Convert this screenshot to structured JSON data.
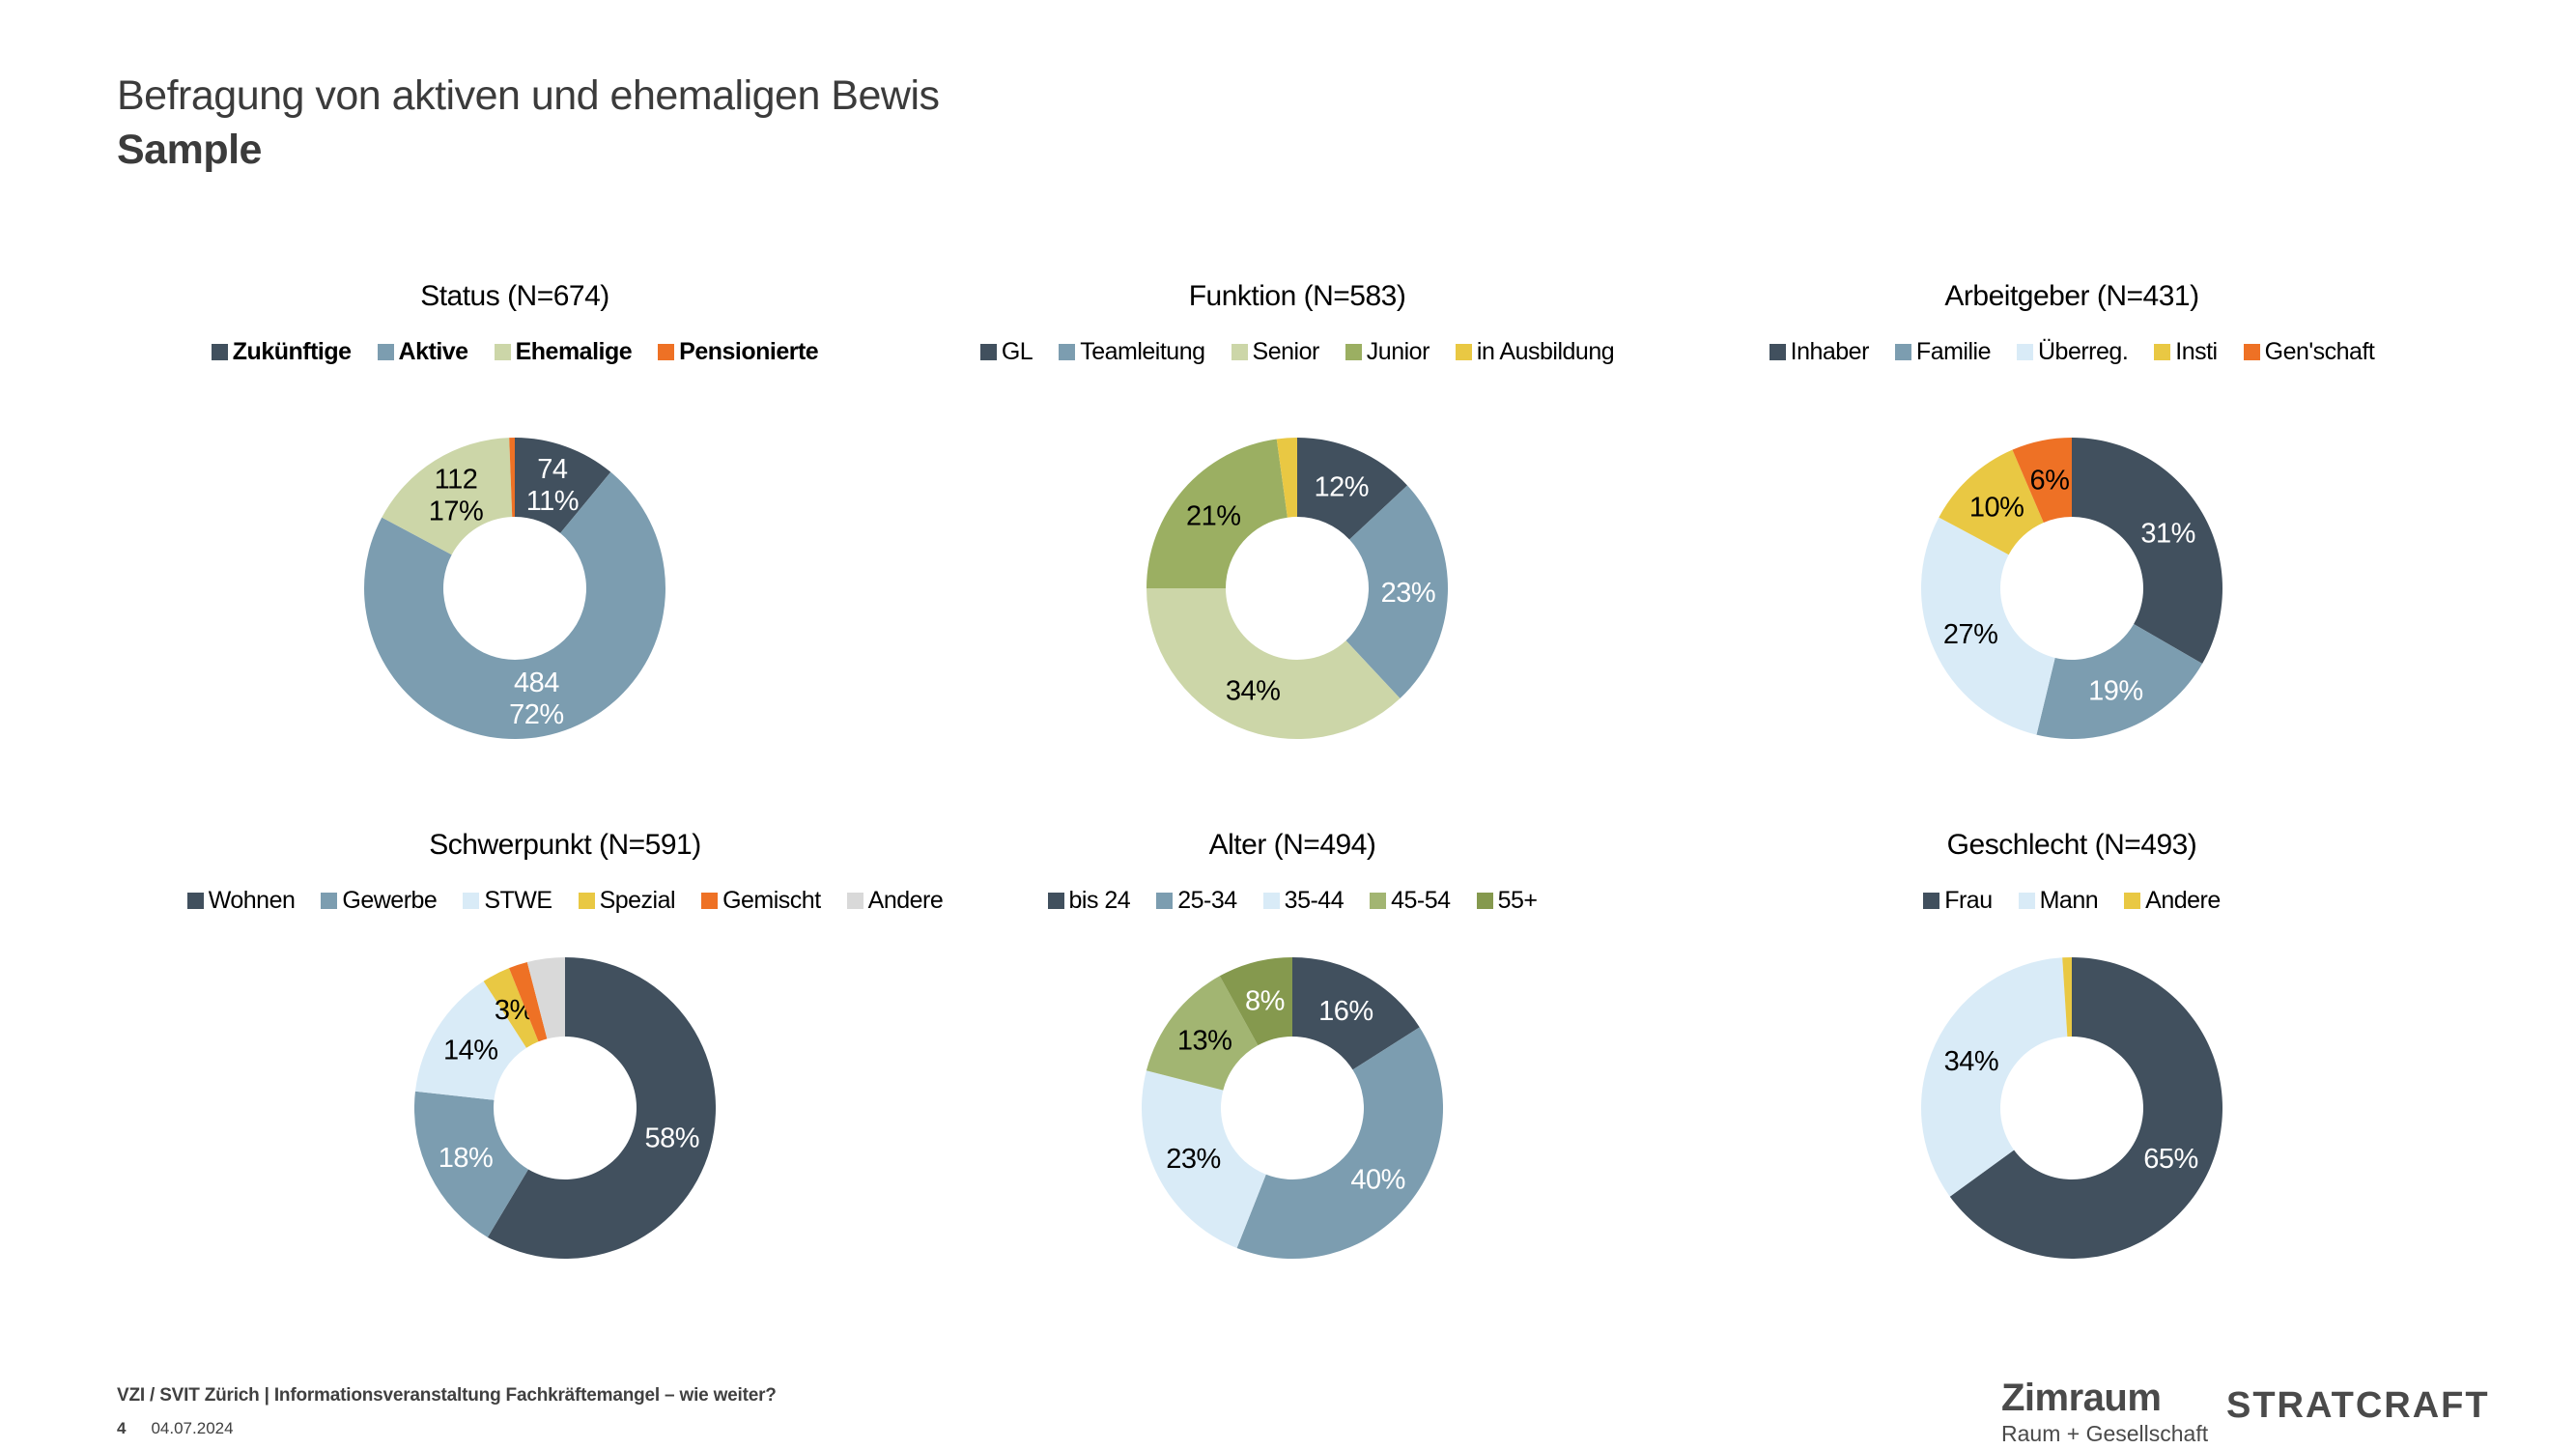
{
  "slide": {
    "title": "Befragung von aktiven und ehemaligen Bewis",
    "subtitle": "Sample"
  },
  "footer": {
    "event_line": "VZI / SVIT Zürich | Informationsveranstaltung Fachkräftemangel – wie weiter?",
    "page_number": "4",
    "date": "04.07.2024"
  },
  "logos": {
    "zimraum": "Zimraum",
    "zimraum_subline": "Raum + Gesellschaft",
    "stratcraft": "STRATCRAFT"
  },
  "colors": {
    "dark_slate": "#41505e",
    "blue_gray": "#7c9db0",
    "light_green": "#ccd6a8",
    "olive": "#9baf62",
    "light_olive": "#a2b572",
    "dark_olive": "#85994e",
    "yellow": "#e9c843",
    "orange": "#ee7125",
    "light_blue": "#d9ebf7",
    "light_gray": "#d9d9d9"
  },
  "chart_data": [
    {
      "type": "pie",
      "title": "Status (N=674)",
      "n": 674,
      "legend_position": "top",
      "legend_bold": true,
      "slices": [
        {
          "label": "Zukünftige",
          "value": 74,
          "percent": 11,
          "data_label": [
            "74",
            "11%"
          ],
          "color": "dark_slate",
          "label_color": "#ffffff"
        },
        {
          "label": "Aktive",
          "value": 484,
          "percent": 72,
          "data_label": [
            "484",
            "72%"
          ],
          "color": "blue_gray",
          "label_color": "#ffffff"
        },
        {
          "label": "Ehemalige",
          "value": 112,
          "percent": 17,
          "data_label": [
            "112",
            "17%"
          ],
          "color": "light_green",
          "label_color": "#000000"
        },
        {
          "label": "Pensionierte",
          "value": 4,
          "data_label": null,
          "color": "orange"
        }
      ]
    },
    {
      "type": "pie",
      "title": "Funktion (N=583)",
      "n": 583,
      "legend_position": "top",
      "legend_bold": false,
      "slices": [
        {
          "label": "GL",
          "value": 12,
          "percent": 12,
          "data_label": [
            "12%"
          ],
          "color": "dark_slate",
          "label_color": "#ffffff"
        },
        {
          "label": "Teamleitung",
          "value": 23,
          "percent": 23,
          "data_label": [
            "23%"
          ],
          "color": "blue_gray",
          "label_color": "#ffffff"
        },
        {
          "label": "Senior",
          "value": 34,
          "percent": 34,
          "data_label": [
            "34%"
          ],
          "color": "light_green",
          "label_color": "#000000"
        },
        {
          "label": "Junior",
          "value": 21,
          "percent": 21,
          "data_label": [
            "21%"
          ],
          "color": "olive",
          "label_color": "#000000"
        },
        {
          "label": "in Ausbildung",
          "value": 2,
          "data_label": null,
          "color": "yellow"
        }
      ]
    },
    {
      "type": "pie",
      "title": "Arbeitgeber (N=431)",
      "n": 431,
      "legend_position": "top",
      "legend_bold": false,
      "slices": [
        {
          "label": "Inhaber",
          "value": 31,
          "percent": 31,
          "data_label": [
            "31%"
          ],
          "color": "dark_slate",
          "label_color": "#ffffff"
        },
        {
          "label": "Familie",
          "value": 19,
          "percent": 19,
          "data_label": [
            "19%"
          ],
          "color": "blue_gray",
          "label_color": "#ffffff"
        },
        {
          "label": "Überreg.",
          "value": 27,
          "percent": 27,
          "data_label": [
            "27%"
          ],
          "color": "light_blue",
          "label_color": "#000000"
        },
        {
          "label": "Insti",
          "value": 10,
          "percent": 10,
          "data_label": [
            "10%"
          ],
          "color": "yellow",
          "label_color": "#000000"
        },
        {
          "label": "Gen'schaft",
          "value": 6,
          "percent": 6,
          "data_label": [
            "6%"
          ],
          "color": "orange",
          "label_color": "#000000"
        }
      ]
    },
    {
      "type": "pie",
      "title": "Schwerpunkt (N=591)",
      "n": 591,
      "legend_position": "top",
      "legend_bold": false,
      "slices": [
        {
          "label": "Wohnen",
          "value": 58,
          "percent": 58,
          "data_label": [
            "58%"
          ],
          "color": "dark_slate",
          "label_color": "#ffffff"
        },
        {
          "label": "Gewerbe",
          "value": 18,
          "percent": 18,
          "data_label": [
            "18%"
          ],
          "color": "blue_gray",
          "label_color": "#ffffff"
        },
        {
          "label": "STWE",
          "value": 14,
          "percent": 14,
          "data_label": [
            "14%"
          ],
          "color": "light_blue",
          "label_color": "#000000"
        },
        {
          "label": "Spezial",
          "value": 3,
          "percent": 3,
          "data_label": [
            "3%"
          ],
          "color": "yellow",
          "label_color": "#000000"
        },
        {
          "label": "Gemischt",
          "value": 2,
          "data_label": null,
          "color": "orange"
        },
        {
          "label": "Andere",
          "value": 4,
          "data_label": null,
          "color": "light_gray"
        }
      ]
    },
    {
      "type": "pie",
      "title": "Alter (N=494)",
      "n": 494,
      "legend_position": "top",
      "legend_bold": false,
      "slices": [
        {
          "label": "bis 24",
          "value": 16,
          "percent": 16,
          "data_label": [
            "16%"
          ],
          "color": "dark_slate",
          "label_color": "#ffffff"
        },
        {
          "label": "25-34",
          "value": 40,
          "percent": 40,
          "data_label": [
            "40%"
          ],
          "color": "blue_gray",
          "label_color": "#ffffff"
        },
        {
          "label": "35-44",
          "value": 23,
          "percent": 23,
          "data_label": [
            "23%"
          ],
          "color": "light_blue",
          "label_color": "#000000"
        },
        {
          "label": "45-54",
          "value": 13,
          "percent": 13,
          "data_label": [
            "13%"
          ],
          "color": "light_olive",
          "label_color": "#000000"
        },
        {
          "label": "55+",
          "value": 8,
          "percent": 8,
          "data_label": [
            "8%"
          ],
          "color": "dark_olive",
          "label_color": "#ffffff"
        }
      ]
    },
    {
      "type": "pie",
      "title": "Geschlecht (N=493)",
      "n": 493,
      "legend_position": "top",
      "legend_bold": false,
      "slices": [
        {
          "label": "Frau",
          "value": 65,
          "percent": 65,
          "data_label": [
            "65%"
          ],
          "color": "dark_slate",
          "label_color": "#ffffff"
        },
        {
          "label": "Mann",
          "value": 34,
          "percent": 34,
          "data_label": [
            "34%"
          ],
          "color": "light_blue",
          "label_color": "#000000"
        },
        {
          "label": "Andere",
          "value": 1,
          "data_label": null,
          "color": "yellow"
        }
      ]
    }
  ]
}
